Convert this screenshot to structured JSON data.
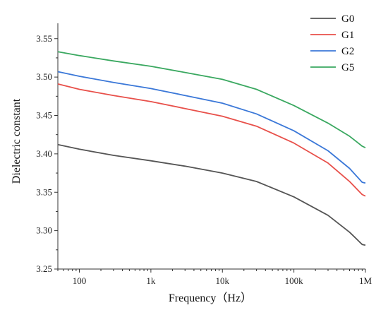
{
  "chart_data": {
    "type": "line",
    "title": "",
    "xlabel": "Frequency（Hz）",
    "ylabel": "Dielectric constant",
    "xscale": "log",
    "xlim": [
      50,
      1000000
    ],
    "ylim": [
      3.25,
      3.57
    ],
    "x_ticks": [
      100,
      1000,
      10000,
      100000,
      1000000
    ],
    "x_tick_labels": [
      "100",
      "1k",
      "10k",
      "100k",
      "1M"
    ],
    "y_ticks": [
      3.25,
      3.3,
      3.35,
      3.4,
      3.45,
      3.5,
      3.55
    ],
    "y_tick_labels": [
      "3.25",
      "3.30",
      "3.35",
      "3.40",
      "3.45",
      "3.50",
      "3.55"
    ],
    "grid": false,
    "legend_position": "top-right",
    "x": [
      50,
      100,
      300,
      1000,
      3000,
      10000,
      30000,
      100000,
      300000,
      600000,
      900000,
      1000000
    ],
    "series": [
      {
        "name": "G0",
        "color": "#555555",
        "values": [
          3.412,
          3.406,
          3.398,
          3.391,
          3.384,
          3.375,
          3.364,
          3.344,
          3.32,
          3.298,
          3.282,
          3.281
        ]
      },
      {
        "name": "G1",
        "color": "#e8504a",
        "values": [
          3.491,
          3.484,
          3.476,
          3.468,
          3.459,
          3.449,
          3.436,
          3.414,
          3.388,
          3.364,
          3.347,
          3.345
        ]
      },
      {
        "name": "G2",
        "color": "#3b78d8",
        "values": [
          3.507,
          3.501,
          3.493,
          3.485,
          3.476,
          3.466,
          3.452,
          3.43,
          3.404,
          3.381,
          3.363,
          3.362
        ]
      },
      {
        "name": "G5",
        "color": "#3aa860",
        "values": [
          3.533,
          3.528,
          3.521,
          3.514,
          3.506,
          3.497,
          3.484,
          3.463,
          3.44,
          3.423,
          3.41,
          3.408
        ]
      }
    ]
  }
}
